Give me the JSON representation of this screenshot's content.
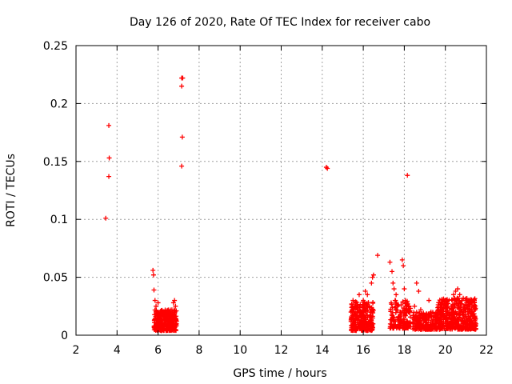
{
  "chart_data": {
    "type": "scatter",
    "title": "Day 126 of 2020, Rate Of TEC Index for receiver cabo",
    "xlabel": "GPS time / hours",
    "ylabel": "ROTI / TECUs",
    "xlim": [
      2,
      22
    ],
    "ylim": [
      0,
      0.25
    ],
    "xticks": [
      2,
      4,
      6,
      8,
      10,
      12,
      14,
      16,
      18,
      20,
      22
    ],
    "yticks": [
      0,
      0.05,
      0.1,
      0.15,
      0.2,
      0.25
    ],
    "xtick_labels": [
      "2",
      "4",
      "6",
      "8",
      "10",
      "12",
      "14",
      "16",
      "18",
      "20",
      "22"
    ],
    "ytick_labels": [
      "0",
      "0.05",
      "0.1",
      "0.15",
      "0.2",
      "0.25"
    ],
    "grid": true,
    "marker": "+",
    "color": "#ff0000",
    "series": [
      {
        "name": "ROTI",
        "points": [
          [
            3.45,
            0.101
          ],
          [
            3.6,
            0.137
          ],
          [
            3.62,
            0.153
          ],
          [
            3.6,
            0.181
          ],
          [
            5.75,
            0.056
          ],
          [
            5.78,
            0.052
          ],
          [
            5.8,
            0.039
          ],
          [
            5.85,
            0.03
          ],
          [
            5.9,
            0.025
          ],
          [
            5.95,
            0.02
          ],
          [
            6.0,
            0.028
          ],
          [
            6.05,
            0.015
          ],
          [
            6.1,
            0.018
          ],
          [
            6.15,
            0.012
          ],
          [
            6.2,
            0.02
          ],
          [
            6.3,
            0.016
          ],
          [
            6.4,
            0.013
          ],
          [
            6.5,
            0.018
          ],
          [
            6.6,
            0.014
          ],
          [
            6.7,
            0.02
          ],
          [
            6.75,
            0.028
          ],
          [
            6.8,
            0.03
          ],
          [
            6.85,
            0.025
          ],
          [
            6.9,
            0.012
          ],
          [
            7.15,
            0.222
          ],
          [
            7.2,
            0.222
          ],
          [
            7.15,
            0.215
          ],
          [
            7.18,
            0.171
          ],
          [
            7.15,
            0.146
          ],
          [
            14.2,
            0.145
          ],
          [
            14.25,
            0.144
          ],
          [
            15.4,
            0.02
          ],
          [
            15.5,
            0.03
          ],
          [
            15.6,
            0.025
          ],
          [
            15.7,
            0.015
          ],
          [
            15.8,
            0.035
          ],
          [
            15.9,
            0.012
          ],
          [
            16.0,
            0.03
          ],
          [
            16.1,
            0.038
          ],
          [
            16.2,
            0.035
          ],
          [
            16.3,
            0.025
          ],
          [
            16.4,
            0.045
          ],
          [
            16.45,
            0.05
          ],
          [
            16.5,
            0.052
          ],
          [
            16.7,
            0.069
          ],
          [
            17.3,
            0.063
          ],
          [
            17.4,
            0.055
          ],
          [
            17.45,
            0.045
          ],
          [
            17.5,
            0.04
          ],
          [
            17.55,
            0.03
          ],
          [
            17.6,
            0.035
          ],
          [
            17.7,
            0.015
          ],
          [
            17.8,
            0.02
          ],
          [
            17.9,
            0.065
          ],
          [
            17.95,
            0.06
          ],
          [
            18.0,
            0.04
          ],
          [
            18.05,
            0.03
          ],
          [
            18.1,
            0.025
          ],
          [
            18.15,
            0.138
          ],
          [
            18.2,
            0.02
          ],
          [
            18.5,
            0.025
          ],
          [
            18.6,
            0.045
          ],
          [
            18.7,
            0.038
          ],
          [
            18.8,
            0.022
          ],
          [
            19.0,
            0.015
          ],
          [
            19.1,
            0.018
          ],
          [
            19.2,
            0.03
          ],
          [
            19.3,
            0.02
          ],
          [
            19.4,
            0.012
          ],
          [
            19.5,
            0.015
          ],
          [
            19.6,
            0.018
          ],
          [
            19.7,
            0.01
          ],
          [
            19.8,
            0.012
          ],
          [
            19.9,
            0.01
          ],
          [
            20.0,
            0.015
          ],
          [
            20.1,
            0.02
          ],
          [
            20.2,
            0.015
          ],
          [
            20.3,
            0.025
          ],
          [
            20.4,
            0.035
          ],
          [
            20.5,
            0.038
          ],
          [
            20.6,
            0.04
          ],
          [
            20.7,
            0.035
          ],
          [
            20.8,
            0.03
          ],
          [
            20.9,
            0.025
          ],
          [
            21.0,
            0.03
          ],
          [
            21.1,
            0.025
          ],
          [
            21.2,
            0.02
          ],
          [
            21.3,
            0.022
          ],
          [
            21.4,
            0.015
          ]
        ],
        "clusters": [
          {
            "x_range": [
              5.8,
              6.9
            ],
            "y_range": [
              0.004,
              0.022
            ],
            "count": 320
          },
          {
            "x_range": [
              15.4,
              16.5
            ],
            "y_range": [
              0.004,
              0.03
            ],
            "count": 260
          },
          {
            "x_range": [
              17.3,
              18.3
            ],
            "y_range": [
              0.006,
              0.03
            ],
            "count": 160
          },
          {
            "x_range": [
              18.4,
              19.6
            ],
            "y_range": [
              0.005,
              0.02
            ],
            "count": 200
          },
          {
            "x_range": [
              19.6,
              21.5
            ],
            "y_range": [
              0.005,
              0.032
            ],
            "count": 420
          }
        ]
      }
    ]
  }
}
